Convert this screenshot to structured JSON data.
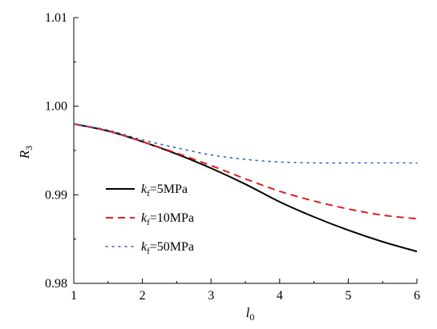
{
  "chart_data": {
    "type": "line",
    "xlabel": {
      "main": "l",
      "sub": "0"
    },
    "ylabel": {
      "main": "R",
      "sub": "3"
    },
    "xlim": [
      1,
      6
    ],
    "ylim": [
      0.98,
      1.01
    ],
    "xticks": [
      1,
      2,
      3,
      4,
      5,
      6
    ],
    "xtick_labels": [
      "1",
      "2",
      "3",
      "4",
      "5",
      "6"
    ],
    "yticks": [
      0.98,
      0.99,
      1.0,
      1.01
    ],
    "ytick_labels": [
      "0.98",
      "0.99",
      "1.00",
      "1.01"
    ],
    "grid": false,
    "legend_position": "center-left",
    "series": [
      {
        "name": "kf=5MPa",
        "label_main": "k",
        "label_sub": "f",
        "label_rest": "=5MPa",
        "color": "#000000",
        "dash": "solid",
        "x": [
          1.0,
          1.5,
          2.0,
          2.5,
          3.0,
          3.5,
          4.0,
          4.5,
          5.0,
          5.5,
          6.0
        ],
        "y": [
          0.998,
          0.9972,
          0.996,
          0.9946,
          0.993,
          0.9912,
          0.9892,
          0.9875,
          0.986,
          0.9847,
          0.9836
        ]
      },
      {
        "name": "kf=10MPa",
        "label_main": "k",
        "label_sub": "f",
        "label_rest": "=10MPa",
        "color": "#e02020",
        "dash": "dashed",
        "x": [
          1.0,
          1.5,
          2.0,
          2.5,
          3.0,
          3.5,
          4.0,
          4.5,
          5.0,
          5.5,
          6.0
        ],
        "y": [
          0.998,
          0.9972,
          0.996,
          0.9947,
          0.9933,
          0.9918,
          0.9904,
          0.9893,
          0.9884,
          0.9877,
          0.9873
        ]
      },
      {
        "name": "kf=50MPa",
        "label_main": "k",
        "label_sub": "f",
        "label_rest": "=50MPa",
        "color": "#3a5fcd",
        "dash": "dotted",
        "x": [
          1.0,
          1.5,
          2.0,
          2.5,
          3.0,
          3.5,
          4.0,
          4.5,
          5.0,
          5.5,
          6.0
        ],
        "y": [
          0.998,
          0.9973,
          0.9962,
          0.9953,
          0.9945,
          0.994,
          0.9937,
          0.9936,
          0.9936,
          0.9936,
          0.9936
        ]
      }
    ]
  }
}
